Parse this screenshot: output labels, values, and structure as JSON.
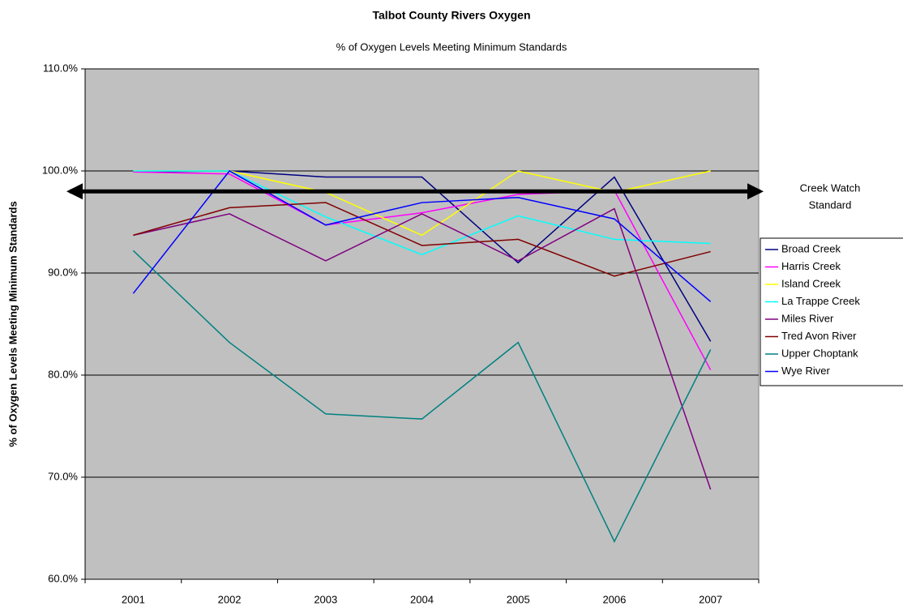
{
  "chart_data": {
    "type": "line",
    "title": "Talbot County Rivers Oxygen",
    "subtitle": "% of Oxygen Levels Meeting Minimum Standards",
    "y_axis_label": "% of Oxygen Levels Meeting Minimum Standards",
    "categories": [
      "2001",
      "2002",
      "2003",
      "2004",
      "2005",
      "2006",
      "2007"
    ],
    "ylim": [
      60,
      110
    ],
    "yticks": [
      {
        "value": 60,
        "label": "60.0%"
      },
      {
        "value": 70,
        "label": "70.0%"
      },
      {
        "value": 80,
        "label": "80.0%"
      },
      {
        "value": 90,
        "label": "90.0%"
      },
      {
        "value": 100,
        "label": "100.0%"
      },
      {
        "value": 110,
        "label": "110.0%"
      }
    ],
    "grid": true,
    "background": "#c0c0c0",
    "legend": "right",
    "reference_line": {
      "value": 98,
      "label": [
        "Creek Watch",
        "Standard"
      ],
      "color": "#000000"
    },
    "series": [
      {
        "name": "Broad Creek",
        "color": "#000080",
        "values": [
          99.9,
          100,
          99.4,
          99.4,
          91.0,
          99.4,
          83.3
        ]
      },
      {
        "name": "Harris Creek",
        "color": "#ff00ff",
        "values": [
          99.9,
          99.7,
          94.7,
          95.9,
          97.7,
          98.1,
          80.5
        ]
      },
      {
        "name": "Island Creek",
        "color": "#ffff00",
        "values": [
          100,
          100,
          97.9,
          93.7,
          100,
          97.9,
          100
        ]
      },
      {
        "name": "La Trappe Creek",
        "color": "#00ffff",
        "values": [
          100,
          100,
          95.5,
          91.8,
          95.6,
          93.3,
          92.9
        ]
      },
      {
        "name": "Miles River",
        "color": "#800080",
        "values": [
          93.7,
          95.8,
          91.2,
          95.8,
          91.2,
          96.3,
          68.8
        ]
      },
      {
        "name": "Tred Avon River",
        "color": "#800000",
        "values": [
          93.7,
          96.4,
          96.9,
          92.7,
          93.3,
          89.7,
          92.1
        ]
      },
      {
        "name": "Upper Choptank",
        "color": "#008080",
        "values": [
          92.2,
          83.2,
          76.2,
          75.7,
          83.2,
          63.7,
          82.5
        ]
      },
      {
        "name": "Wye River",
        "color": "#0000ff",
        "values": [
          88.0,
          100,
          94.7,
          96.9,
          97.4,
          95.3,
          87.2
        ]
      }
    ]
  }
}
